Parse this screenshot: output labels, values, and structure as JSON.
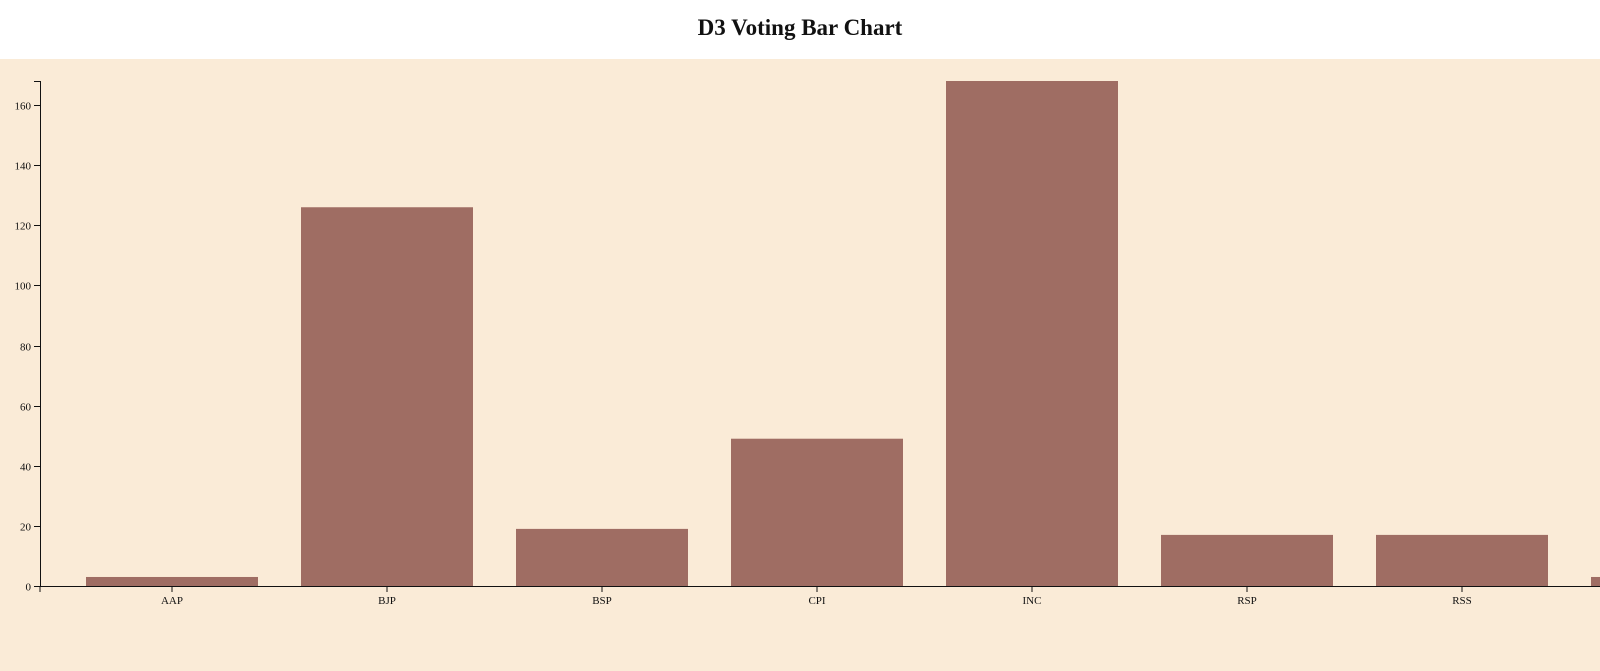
{
  "page": {
    "title": "D3 Voting Bar Chart"
  },
  "colors": {
    "bar": "#9f6d63",
    "background": "#faebd7",
    "axis": "#111111"
  },
  "chart_data": {
    "type": "bar",
    "title": "D3 Voting Bar Chart",
    "xlabel": "",
    "ylabel": "",
    "categories": [
      "AAP",
      "BJP",
      "BSP",
      "CPI",
      "INC",
      "RSP",
      "RSS",
      ""
    ],
    "values": [
      3,
      126,
      19,
      49,
      168,
      17,
      17,
      3
    ],
    "ylim": [
      0,
      168
    ],
    "yticks": [
      0,
      20,
      40,
      60,
      80,
      100,
      120,
      140,
      160
    ],
    "grid": false,
    "legend": "none"
  }
}
